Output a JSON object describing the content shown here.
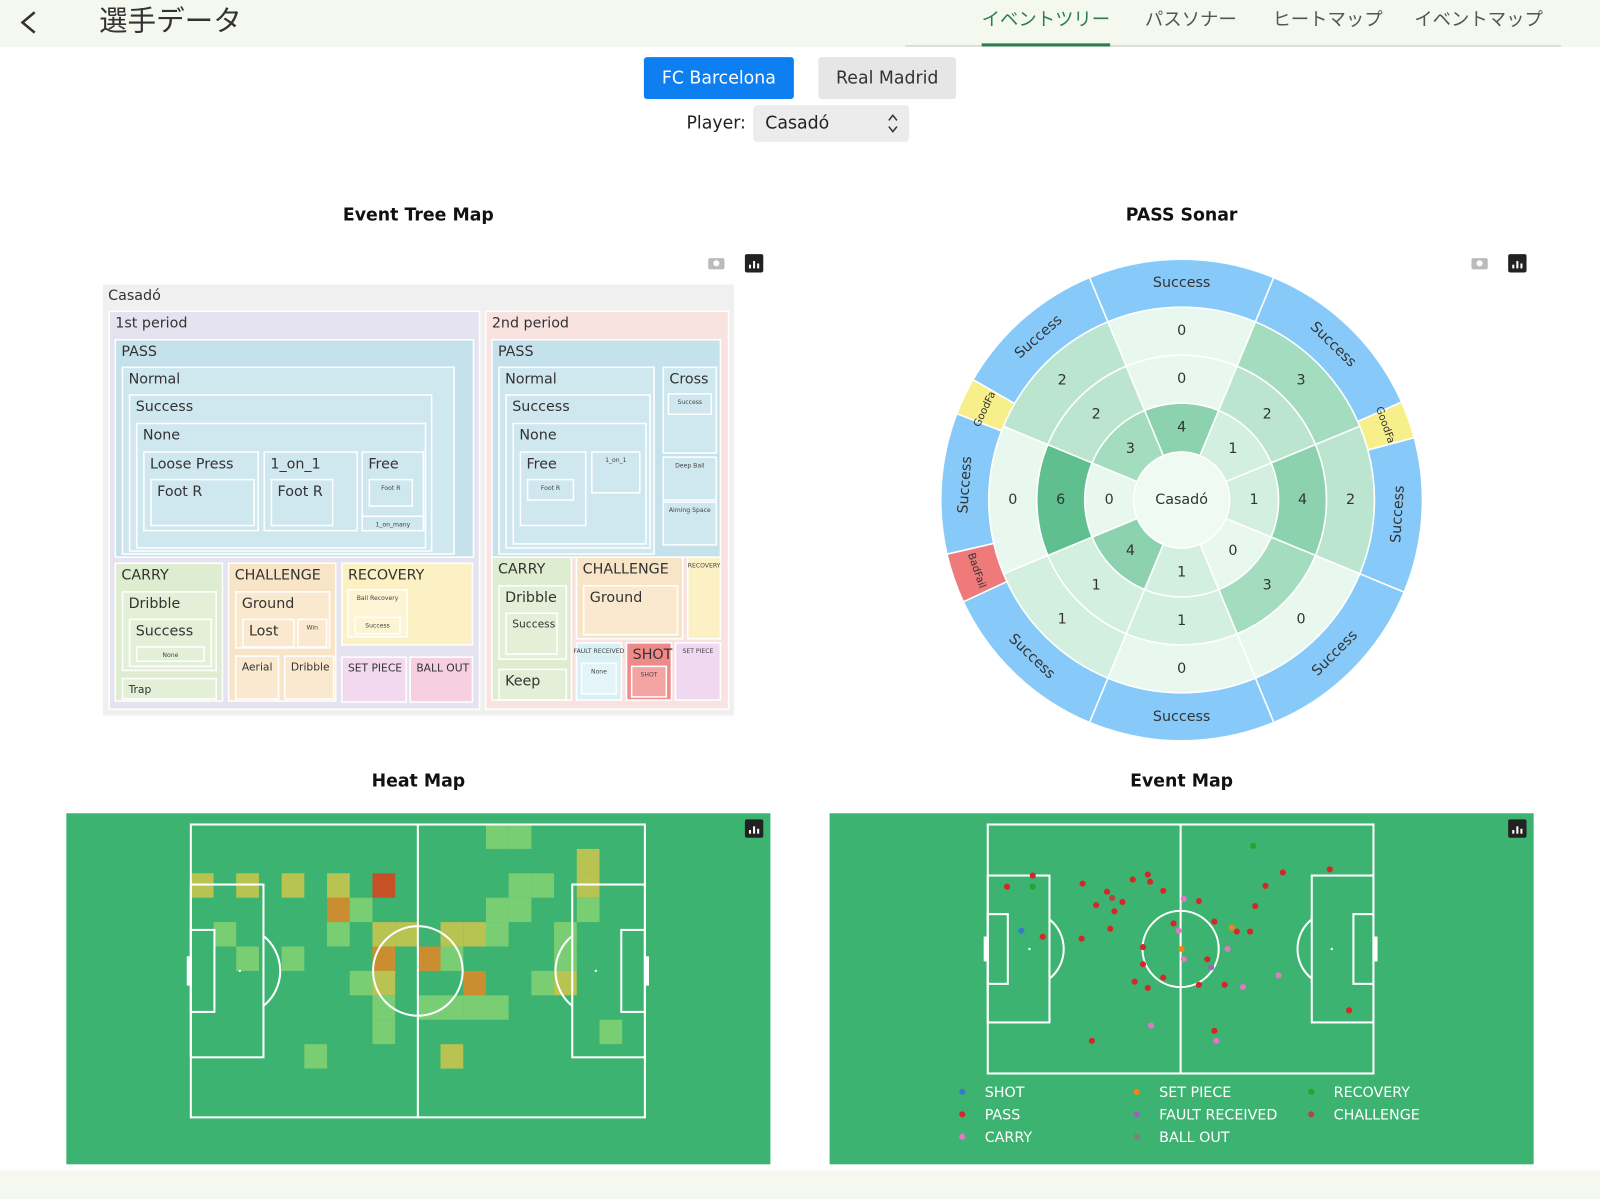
{
  "header": {
    "title": "選手データ",
    "tabs": [
      "イベントツリー",
      "パスソナー",
      "ヒートマップ",
      "イベントマップ"
    ],
    "active_tab": 0
  },
  "teams": [
    "FC Barcelona",
    "Real Madrid"
  ],
  "active_team": 0,
  "player": {
    "label": "Player:",
    "value": "Casadó"
  },
  "chart_data": [
    {
      "type": "treemap",
      "title": "Event Tree Map",
      "labels": [
        "Casadó",
        "1st period",
        "2nd period",
        "PASS",
        "Normal",
        "Success",
        "None",
        "Loose Press",
        "Foot R",
        "1_on_1",
        "Foot R",
        "Free",
        "Foot R",
        "1_on_many",
        "PASS",
        "Normal",
        "Success",
        "None",
        "Free",
        "Foot R",
        "1_on_1",
        "Cross",
        "Success",
        "Deep Ball",
        "Aiming Space",
        "CARRY",
        "Dribble",
        "Success",
        "None",
        "Trap",
        "CHALLENGE",
        "Ground",
        "Lost",
        "Win",
        "Aerial",
        "Dribble",
        "RECOVERY",
        "Ball Recovery",
        "Success",
        "SET PIECE",
        "BALL OUT",
        "CARRY",
        "Dribble",
        "Success",
        "Keep",
        "CHALLENGE",
        "Ground",
        "RECOVERY",
        "FAULT RECEIVED",
        "SHOT",
        "SET PIECE",
        "None",
        "SHOT"
      ],
      "colors": [
        "#f0f0f0",
        "#e5e3ef",
        "#f9e3e1",
        "#c5e2ec",
        "#cfe7ef",
        "#cfe7ef",
        "#cfe7ef",
        "#cfe7ef",
        "#cfe7ef",
        "#cfe7ef",
        "#cfe7ef",
        "#cfe7ef",
        "#cfe7ef",
        "#cfe7ef",
        "#c5e2ec",
        "#cfe7ef",
        "#cfe7ef",
        "#cfe7ef",
        "#cfe7ef",
        "#cfe7ef",
        "#cfe7ef",
        "#cfe7ef",
        "#cfe7ef",
        "#cfe7ef",
        "#cfe7ef",
        "#deecd0",
        "#e3efd6",
        "#e3efd6",
        "#e3efd6",
        "#e3efd6",
        "#f8e4c6",
        "#fae9cf",
        "#fae9cf",
        "#fae9cf",
        "#fae9cf",
        "#fae9cf",
        "#fbf1c4",
        "#fcf4d2",
        "#fcf4d2",
        "#f2d9ef",
        "#f6cfe1",
        "#deecd0",
        "#e3efd6",
        "#e3efd6",
        "#e3efd6",
        "#f8e4c6",
        "#fae9cf",
        "#fbf1c4",
        "#d9f0f4",
        "#ef8a88",
        "#efd8f0",
        "#e3f5f8",
        "#f4a5a3"
      ]
    },
    {
      "type": "sonar",
      "title": "PASS Sonar",
      "center_label": "Casadó",
      "rings": [
        [
          4,
          1,
          1,
          0,
          1,
          4,
          0,
          3
        ],
        [
          0,
          2,
          4,
          3,
          1,
          1,
          6,
          2
        ],
        [
          0,
          3,
          2,
          0,
          0,
          1,
          0,
          2
        ]
      ],
      "colorscale": [
        "#e9f8ef",
        "#5fbf8f"
      ],
      "outer": {
        "labels": [
          "Success",
          "Success",
          "GoodFail",
          "Success",
          "Success",
          "Success",
          "Success",
          "BadFail",
          "Success",
          "GoodFail",
          "Success"
        ],
        "colors": [
          "#87cafa",
          "#87cafa",
          "#f7f08a",
          "#87cafa",
          "#87cafa",
          "#87cafa",
          "#87cafa",
          "#ee7a7a",
          "#87cafa",
          "#f7f08a",
          "#87cafa"
        ]
      }
    },
    {
      "type": "heatmap",
      "title": "Heat Map",
      "xlim": [
        0,
        20
      ],
      "ylim": [
        0,
        12
      ],
      "x": [
        13,
        14,
        17,
        0,
        2,
        4,
        6,
        8,
        14,
        15,
        17,
        6,
        7,
        13,
        14,
        17,
        1,
        6,
        8,
        9,
        11,
        12,
        13,
        16,
        2,
        4,
        8,
        10,
        11,
        16,
        7,
        8,
        12,
        15,
        16,
        8,
        10,
        11,
        12,
        13,
        8,
        18,
        5,
        11
      ],
      "y": [
        0,
        0,
        1,
        2,
        2,
        2,
        2,
        2,
        2,
        2,
        2,
        3,
        3,
        3,
        3,
        3,
        4,
        4,
        4,
        4,
        4,
        4,
        4,
        4,
        5,
        5,
        5,
        5,
        5,
        5,
        6,
        6,
        6,
        6,
        6,
        7,
        7,
        7,
        7,
        7,
        8,
        8,
        9,
        9
      ],
      "values": [
        1,
        1,
        2,
        2,
        2,
        2,
        2,
        4,
        1,
        1,
        2,
        3,
        1,
        1,
        1,
        1,
        1,
        1,
        2,
        2,
        2,
        2,
        1,
        1,
        1,
        1,
        3,
        3,
        1,
        1,
        1,
        2,
        3,
        1,
        2,
        1,
        1,
        1,
        1,
        1,
        1,
        1,
        1,
        2
      ],
      "colorscale": [
        "#7fcf72",
        "#c6c44f",
        "#d98a2a",
        "#d5461f"
      ],
      "background": "#3cb371"
    },
    {
      "type": "scatter",
      "title": "Event Map",
      "xlim": [
        0,
        120
      ],
      "ylim": [
        0,
        80
      ],
      "background": "#3cb371",
      "series": [
        {
          "name": "SHOT",
          "color": "#3a78c9",
          "x": [
            10.5
          ],
          "y": [
            34.1
          ]
        },
        {
          "name": "PASS",
          "color": "#d62728",
          "x": [
            6.0,
            14.0,
            29.5,
            33.7,
            37.1,
            39.4,
            41.9,
            38.1,
            45.1,
            49.8,
            50.5,
            54.6,
            57.8,
            48.3,
            48.3,
            45.7,
            49.8,
            54.6,
            65.7,
            70.5,
            77.5,
            81.6,
            83.2,
            86.4,
            91.8,
            106.4,
            68.3,
            73.7,
            65.7,
            32.4,
            70.5,
            112.4,
            29.2,
            17.1
          ],
          "y": [
            20.0,
            16.4,
            19.0,
            25.9,
            21.6,
            27.9,
            24.9,
            33.5,
            17.7,
            16.1,
            18.4,
            21.3,
            31.8,
            39.4,
            44.9,
            50.5,
            52.5,
            49.2,
            24.6,
            31.2,
            34.4,
            34.4,
            26.2,
            19.7,
            15.4,
            14.4,
            43.3,
            51.5,
            51.5,
            69.5,
            66.3,
            59.7,
            36.7,
            36.1
          ]
        },
        {
          "name": "CARRY",
          "color": "#e377c2",
          "x": [
            61.0,
            61.0,
            74.6,
            79.4,
            90.5,
            50.8,
            71.1,
            59.4
          ],
          "y": [
            23.9,
            43.3,
            40.0,
            52.2,
            48.5,
            64.6,
            69.5,
            34.1
          ]
        },
        {
          "name": "SET PIECE",
          "color": "#ff7f0e",
          "x": [
            75.9,
            60.3
          ],
          "y": [
            33.1,
            40.0
          ]
        },
        {
          "name": "FAULT RECEIVED",
          "color": "#9467bd",
          "x": [
            69.5
          ],
          "y": [
            45.9
          ]
        },
        {
          "name": "BALL OUT",
          "color": "#7f7f7f",
          "x": [],
          "y": []
        },
        {
          "name": "RECOVERY",
          "color": "#2ca02c",
          "x": [
            82.6,
            14.0
          ],
          "y": [
            6.9,
            20.0
          ]
        },
        {
          "name": "CHALLENGE",
          "color": "#b5453f",
          "x": [
            38.7
          ],
          "y": [
            23.6
          ]
        }
      ]
    }
  ]
}
